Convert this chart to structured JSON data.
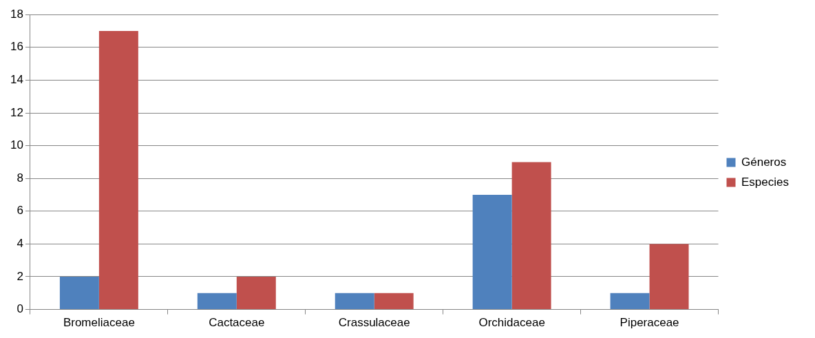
{
  "chart_data": {
    "type": "bar",
    "categories": [
      "Bromeliaceae",
      "Cactaceae",
      "Crassulaceae",
      "Orchidaceae",
      "Piperaceae"
    ],
    "series": [
      {
        "name": "Géneros",
        "color": "#4f81bd",
        "values": [
          2,
          1,
          1,
          7,
          1
        ]
      },
      {
        "name": "Especies",
        "color": "#c0504d",
        "values": [
          17,
          2,
          1,
          9,
          4
        ]
      }
    ],
    "ylim": [
      0,
      18
    ],
    "yticks": [
      0,
      2,
      4,
      6,
      8,
      10,
      12,
      14,
      16,
      18
    ],
    "grid": "y",
    "legend": "right"
  }
}
